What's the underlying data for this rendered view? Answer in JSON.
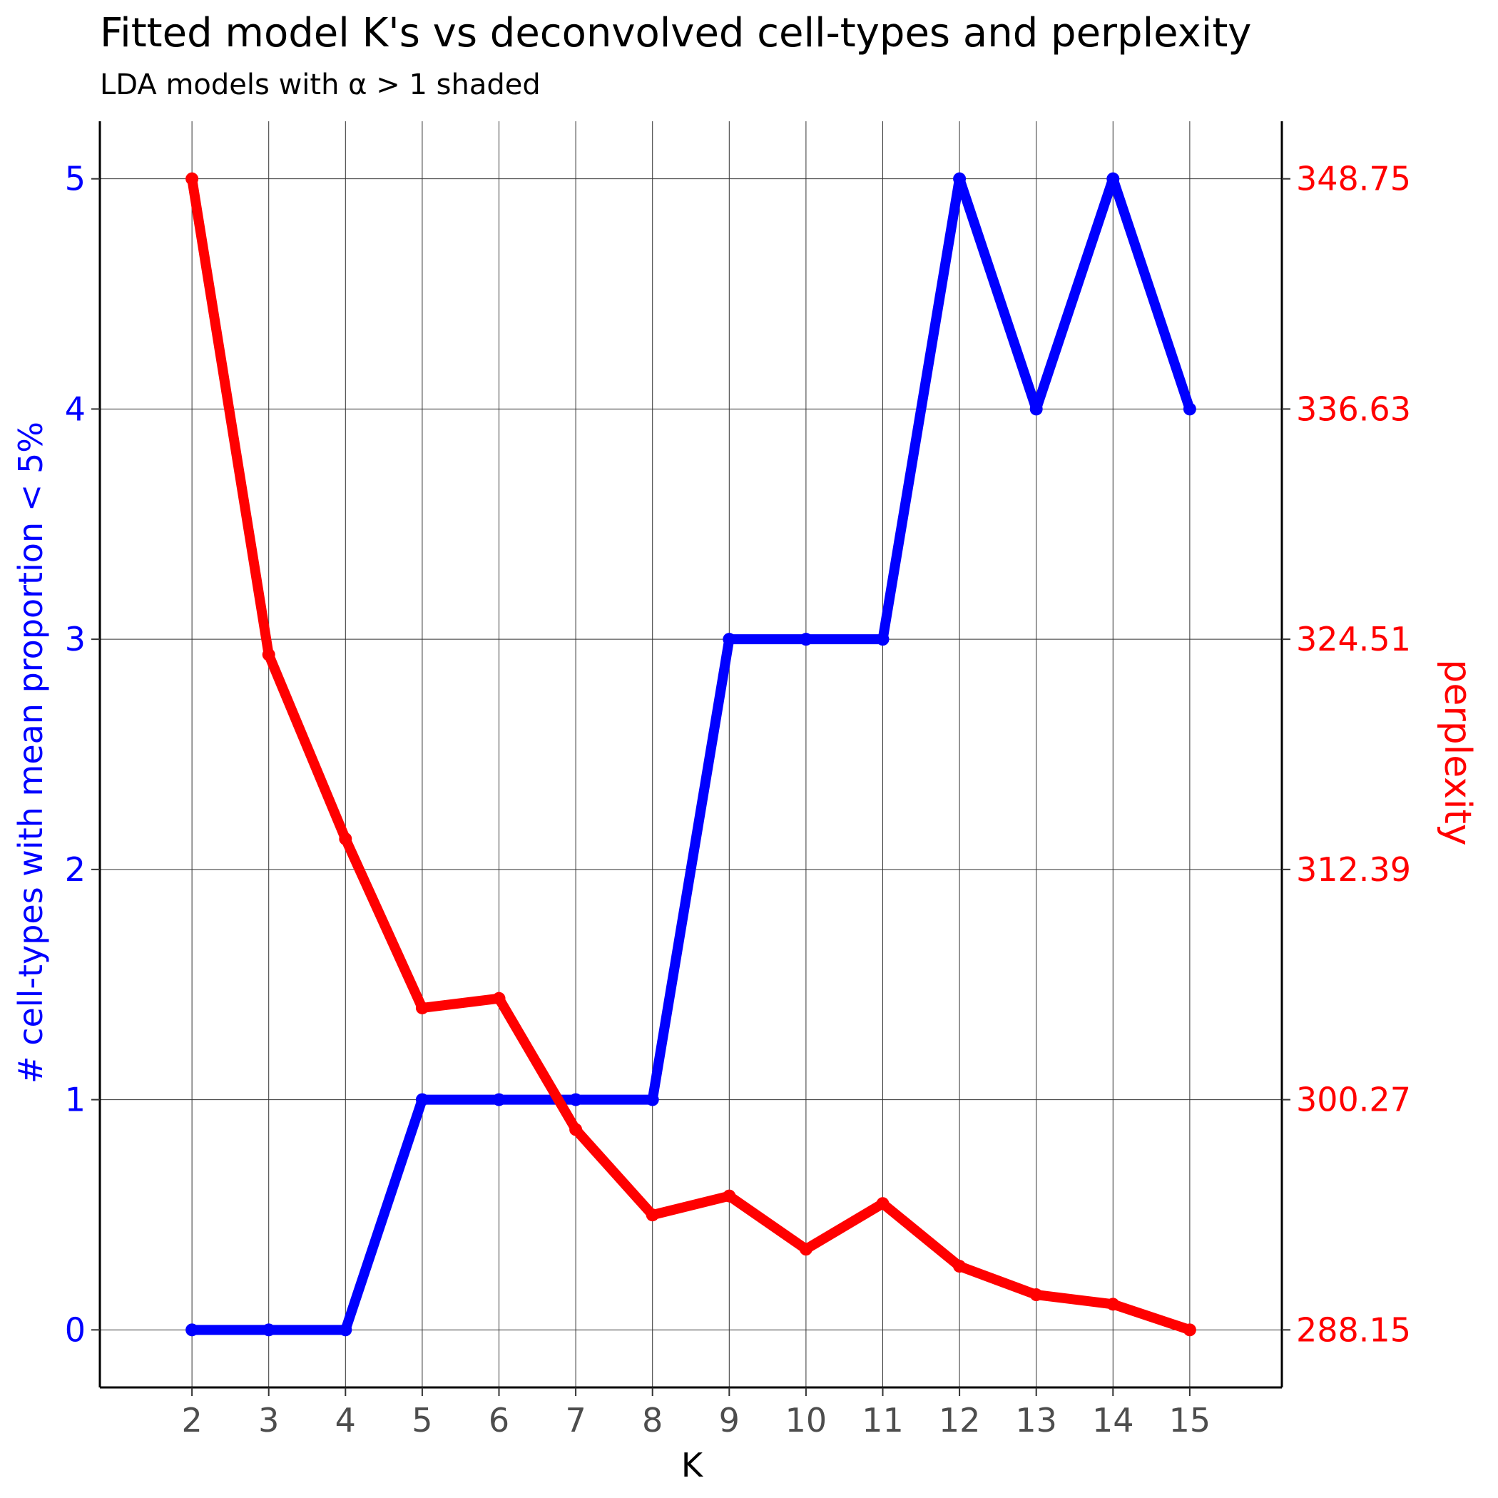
{
  "chart_data": {
    "type": "line",
    "title": "Fitted model K's vs deconvolved cell-types and perplexity",
    "subtitle": "LDA models with α > 1 shaded",
    "xlabel": "K",
    "ylabel_left": "# cell-types with mean proportion < 5%",
    "ylabel_right": "perplexity",
    "x": [
      2,
      3,
      4,
      5,
      6,
      7,
      8,
      9,
      10,
      11,
      12,
      13,
      14,
      15
    ],
    "x_ticks": [
      "2",
      "3",
      "4",
      "5",
      "6",
      "7",
      "8",
      "9",
      "10",
      "11",
      "12",
      "13",
      "14",
      "15"
    ],
    "xlim": [
      0.8,
      16.2
    ],
    "ylim_left": [
      -0.25,
      5.25
    ],
    "ylim_right": [
      285.12,
      351.78
    ],
    "y_ticks_left": [
      "0",
      "1",
      "2",
      "3",
      "4",
      "5"
    ],
    "y_ticks_right": [
      "288.15",
      "300.27",
      "312.39",
      "324.51",
      "336.63",
      "348.75"
    ],
    "grid": true,
    "series": [
      {
        "name": "# cell-types with mean proportion < 5%",
        "axis": "left",
        "color": "#0000ff",
        "values": [
          0,
          0,
          0,
          1,
          1,
          1,
          1,
          3,
          3,
          3,
          5,
          4,
          5,
          4
        ]
      },
      {
        "name": "perplexity",
        "axis": "right",
        "color": "#ff0000",
        "values": [
          348.75,
          323.7,
          314.0,
          305.1,
          305.6,
          298.7,
          294.2,
          295.2,
          292.4,
          294.8,
          291.5,
          290.0,
          289.5,
          288.15
        ]
      }
    ]
  }
}
